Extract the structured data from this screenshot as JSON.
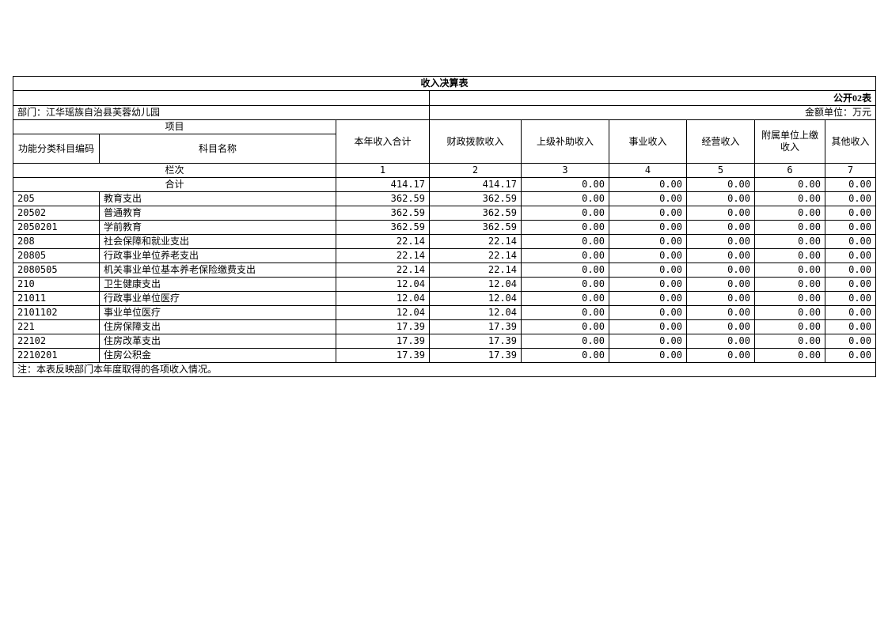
{
  "title": "收入决算表",
  "meta": {
    "sheet_label": "公开02表",
    "department": "部门：江华瑶族自治县芙蓉幼儿园",
    "unit_label": "金额单位：万元"
  },
  "table": {
    "header": {
      "project_group": "项目",
      "code_label": "功能分类科目编码",
      "name_label": "科目名称",
      "value_columns": [
        "本年收入合计",
        "财政拨款收入",
        "上级补助收入",
        "事业收入",
        "经营收入",
        "附属单位上缴收入",
        "其他收入"
      ]
    },
    "index_row": {
      "label": "栏次",
      "indices": [
        "1",
        "2",
        "3",
        "4",
        "5",
        "6",
        "7"
      ]
    },
    "total_row": {
      "label": "合计",
      "values": [
        "414.17",
        "414.17",
        "0.00",
        "0.00",
        "0.00",
        "0.00",
        "0.00"
      ]
    },
    "rows": [
      {
        "code": "205",
        "name": "教育支出",
        "values": [
          "362.59",
          "362.59",
          "0.00",
          "0.00",
          "0.00",
          "0.00",
          "0.00"
        ]
      },
      {
        "code": "20502",
        "name": "普通教育",
        "values": [
          "362.59",
          "362.59",
          "0.00",
          "0.00",
          "0.00",
          "0.00",
          "0.00"
        ]
      },
      {
        "code": "2050201",
        "name": "学前教育",
        "values": [
          "362.59",
          "362.59",
          "0.00",
          "0.00",
          "0.00",
          "0.00",
          "0.00"
        ]
      },
      {
        "code": "208",
        "name": "社会保障和就业支出",
        "values": [
          "22.14",
          "22.14",
          "0.00",
          "0.00",
          "0.00",
          "0.00",
          "0.00"
        ]
      },
      {
        "code": "20805",
        "name": "行政事业单位养老支出",
        "values": [
          "22.14",
          "22.14",
          "0.00",
          "0.00",
          "0.00",
          "0.00",
          "0.00"
        ]
      },
      {
        "code": "2080505",
        "name": "机关事业单位基本养老保险缴费支出",
        "values": [
          "22.14",
          "22.14",
          "0.00",
          "0.00",
          "0.00",
          "0.00",
          "0.00"
        ]
      },
      {
        "code": "210",
        "name": "卫生健康支出",
        "values": [
          "12.04",
          "12.04",
          "0.00",
          "0.00",
          "0.00",
          "0.00",
          "0.00"
        ]
      },
      {
        "code": "21011",
        "name": "行政事业单位医疗",
        "values": [
          "12.04",
          "12.04",
          "0.00",
          "0.00",
          "0.00",
          "0.00",
          "0.00"
        ]
      },
      {
        "code": "2101102",
        "name": "事业单位医疗",
        "values": [
          "12.04",
          "12.04",
          "0.00",
          "0.00",
          "0.00",
          "0.00",
          "0.00"
        ]
      },
      {
        "code": "221",
        "name": "住房保障支出",
        "values": [
          "17.39",
          "17.39",
          "0.00",
          "0.00",
          "0.00",
          "0.00",
          "0.00"
        ]
      },
      {
        "code": "22102",
        "name": "住房改革支出",
        "values": [
          "17.39",
          "17.39",
          "0.00",
          "0.00",
          "0.00",
          "0.00",
          "0.00"
        ]
      },
      {
        "code": "2210201",
        "name": "住房公积金",
        "values": [
          "17.39",
          "17.39",
          "0.00",
          "0.00",
          "0.00",
          "0.00",
          "0.00"
        ]
      }
    ],
    "note": "注：本表反映部门本年度取得的各项收入情况。"
  }
}
